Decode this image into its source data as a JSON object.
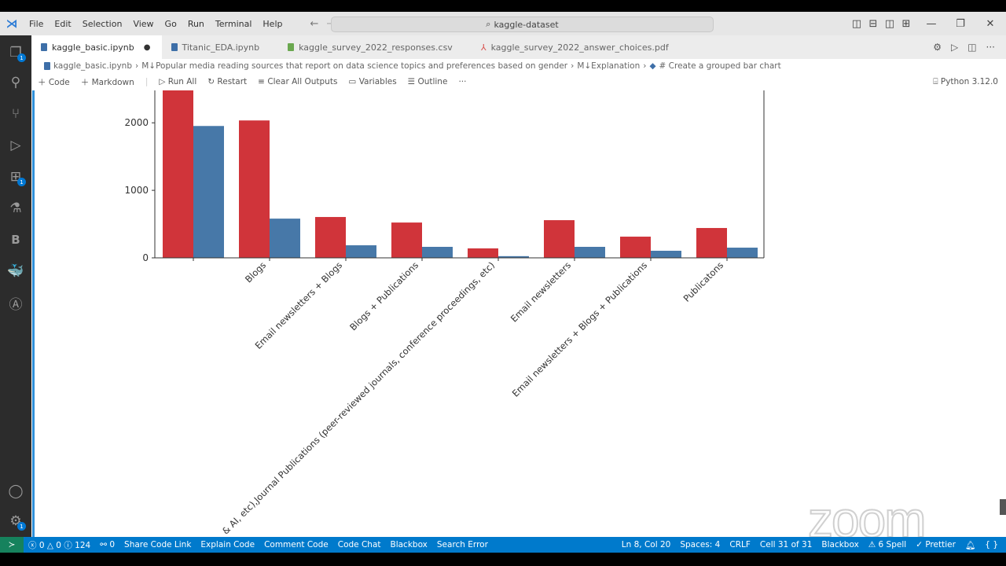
{
  "window": {
    "menu": [
      "File",
      "Edit",
      "Selection",
      "View",
      "Go",
      "Run",
      "Terminal",
      "Help"
    ],
    "search": "kaggle-dataset"
  },
  "activity_bar": {
    "items": [
      {
        "icon": "explorer-icon",
        "badge": "1"
      },
      {
        "icon": "search-icon"
      },
      {
        "icon": "source-control-icon"
      },
      {
        "icon": "run-debug-icon"
      },
      {
        "icon": "extensions-icon",
        "badge": "1"
      },
      {
        "icon": "testing-icon"
      },
      {
        "icon": "blackbox-icon",
        "label": "B"
      },
      {
        "icon": "docker-icon"
      },
      {
        "icon": "gitlens-icon"
      }
    ],
    "bottom": [
      {
        "icon": "account-icon"
      },
      {
        "icon": "settings-gear-icon",
        "badge": "1"
      }
    ]
  },
  "tabs": [
    {
      "label": "kaggle_basic.ipynb",
      "active": true,
      "dirty": "●",
      "color": "#3e6fa8"
    },
    {
      "label": "Titanic_EDA.ipynb",
      "color": "#3e6fa8"
    },
    {
      "label": "kaggle_survey_2022_responses.csv",
      "color": "#6aa84f"
    },
    {
      "label": "kaggle_survey_2022_answer_choices.pdf",
      "color": "#d9534f"
    }
  ],
  "breadcrumb": [
    "kaggle_basic.ipynb",
    "M↓Popular media reading sources that report on data science topics and preferences based on gender",
    "M↓Explanation",
    "# Create a grouped bar chart"
  ],
  "toolbar": {
    "code": "Code",
    "markdown": "Markdown",
    "run_all": "Run All",
    "restart": "Restart",
    "clear": "Clear All Outputs",
    "variables": "Variables",
    "outline": "Outline",
    "more": "···",
    "kernel": "Python 3.12.0"
  },
  "chart_data": {
    "type": "bar",
    "categories": [
      "",
      "Blogs",
      "Email newsletters + Blogs",
      "Blogs + Publications",
      "& AI, etc),Journal Publications (peer-reviewed journals, conference proceedings, etc)",
      "Email newsletters",
      "Email newsletters + Blogs + Publications",
      "Publicatons"
    ],
    "series": [
      {
        "color": "#d0343a",
        "values": [
          2600,
          2035,
          605,
          523,
          140,
          558,
          314,
          442
        ]
      },
      {
        "color": "#4778a8",
        "values": [
          1953,
          581,
          186,
          163,
          25,
          163,
          105,
          151
        ]
      }
    ],
    "yticks": [
      0,
      1000,
      2000
    ],
    "ylim": [
      0,
      2480
    ],
    "grid": false
  },
  "status": {
    "errors": "0",
    "warnings": "0",
    "info": "124",
    "ports": "0",
    "items": [
      "Share Code Link",
      "Explain Code",
      "Comment Code",
      "Code Chat",
      "Blackbox",
      "Search Error"
    ],
    "right": [
      "Ln 8, Col 20",
      "Spaces: 4",
      "CRLF",
      "Cell 31 of 31",
      "Blackbox",
      "⚠ 6 Spell",
      "✓ Prettier"
    ]
  },
  "watermark": "zoom"
}
